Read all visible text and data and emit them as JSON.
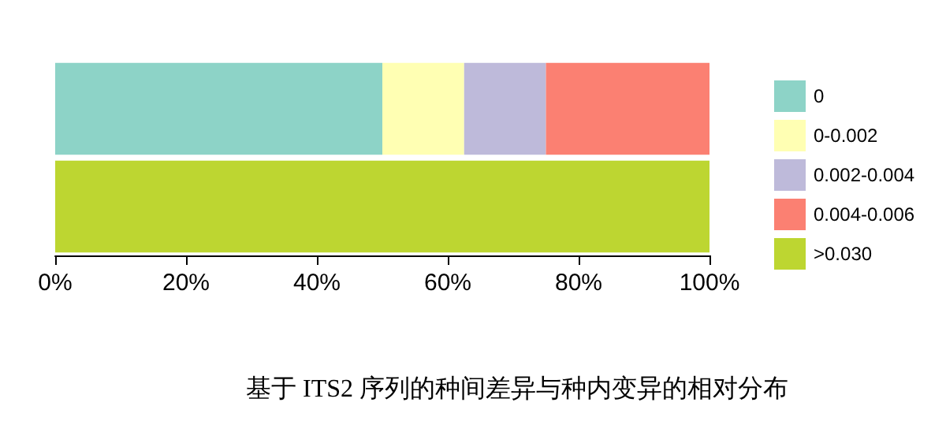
{
  "chart_data": {
    "type": "bar",
    "orientation": "horizontal",
    "stacked": true,
    "title": "基于 ITS2 序列的种间差异与种内变异的相对分布",
    "categories": [
      null,
      null
    ],
    "series": [
      {
        "name": "0",
        "color": "#8dd3c7",
        "values": [
          50,
          null
        ]
      },
      {
        "name": "0-0.002",
        "color": "#ffffb3",
        "values": [
          12.5,
          null
        ]
      },
      {
        "name": "0.002-0.004",
        "color": "#bebada",
        "values": [
          12.5,
          null
        ]
      },
      {
        "name": "0.004-0.006",
        "color": "#fb8072",
        "values": [
          25,
          null
        ]
      },
      {
        "name": ">0.030",
        "color": "#bdd631",
        "values": [
          null,
          100
        ]
      }
    ],
    "xlim": [
      0,
      100
    ],
    "xticks": [
      {
        "value": 0,
        "label": "0%"
      },
      {
        "value": 20,
        "label": "20%"
      },
      {
        "value": 40,
        "label": "40%"
      },
      {
        "value": 60,
        "label": "60%"
      },
      {
        "value": 80,
        "label": "80%"
      },
      {
        "value": 100,
        "label": "100%"
      }
    ],
    "grid": false,
    "legend": "right"
  }
}
